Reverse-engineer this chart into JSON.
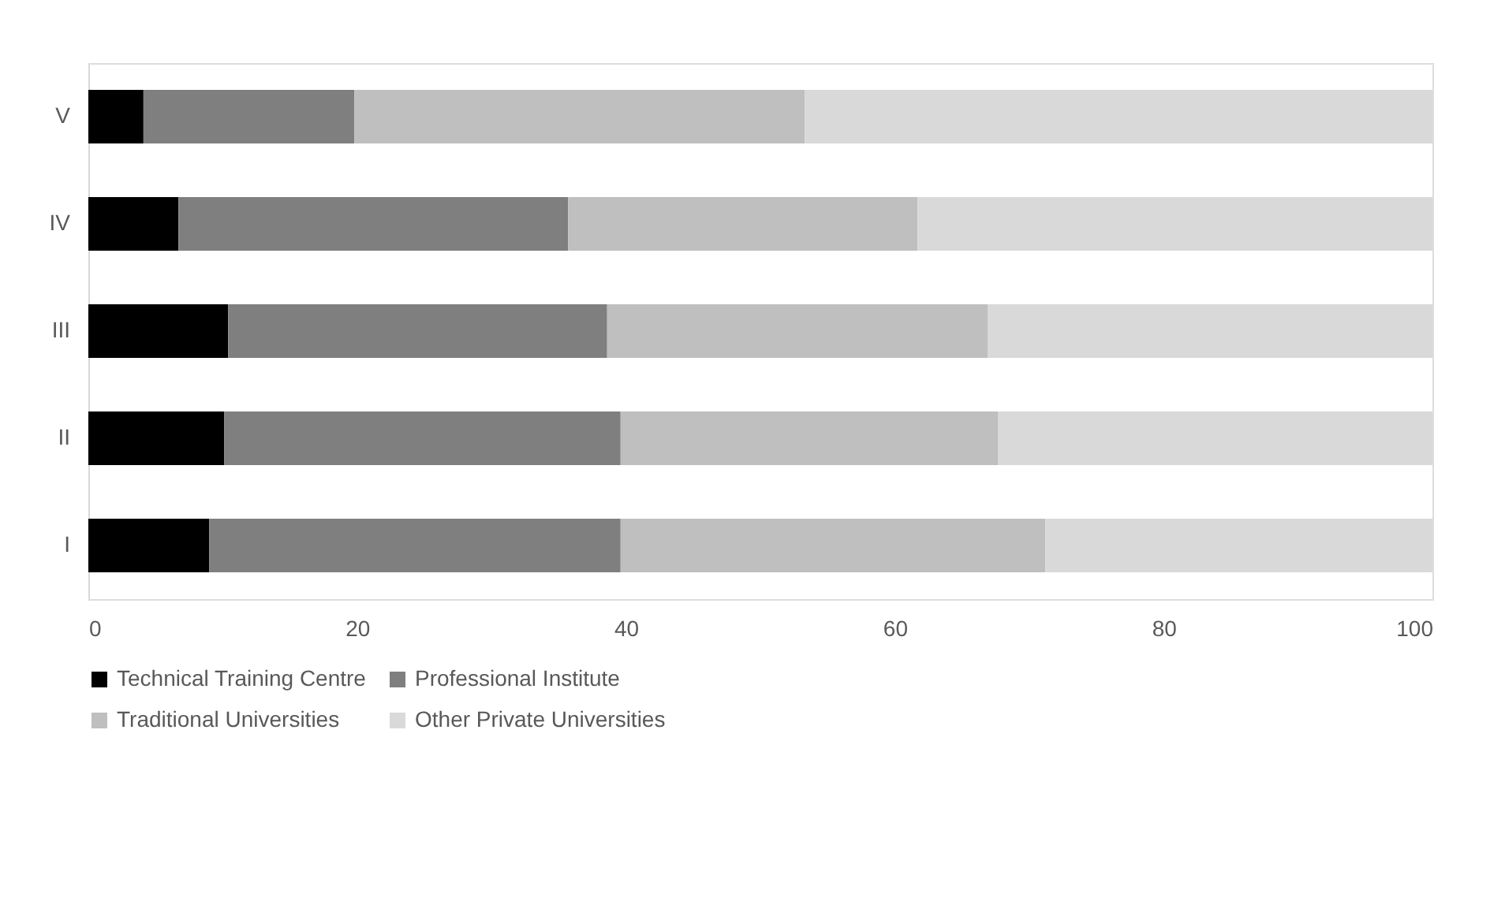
{
  "chart_data": {
    "type": "bar",
    "orientation": "horizontal",
    "stacked": true,
    "categories": [
      "V",
      "IV",
      "III",
      "II",
      "I"
    ],
    "series": [
      {
        "name": "Technical Training Centre",
        "color": "#000000",
        "values": [
          4.1,
          6.7,
          10.4,
          10.1,
          9.0
        ]
      },
      {
        "name": "Professional Institute",
        "color": "#7f7f7f",
        "values": [
          15.7,
          29.0,
          28.2,
          29.5,
          30.6
        ]
      },
      {
        "name": "Traditional Universities",
        "color": "#bfbfbf",
        "values": [
          33.5,
          26.0,
          28.3,
          28.1,
          31.6
        ]
      },
      {
        "name": "Other Private Universities",
        "color": "#d9d9d9",
        "values": [
          46.7,
          38.3,
          33.1,
          32.3,
          28.8
        ]
      }
    ],
    "xlim": [
      0,
      100
    ],
    "xticks": [
      0,
      20,
      40,
      60,
      80,
      100
    ],
    "grid": false,
    "legend": "bottom"
  }
}
